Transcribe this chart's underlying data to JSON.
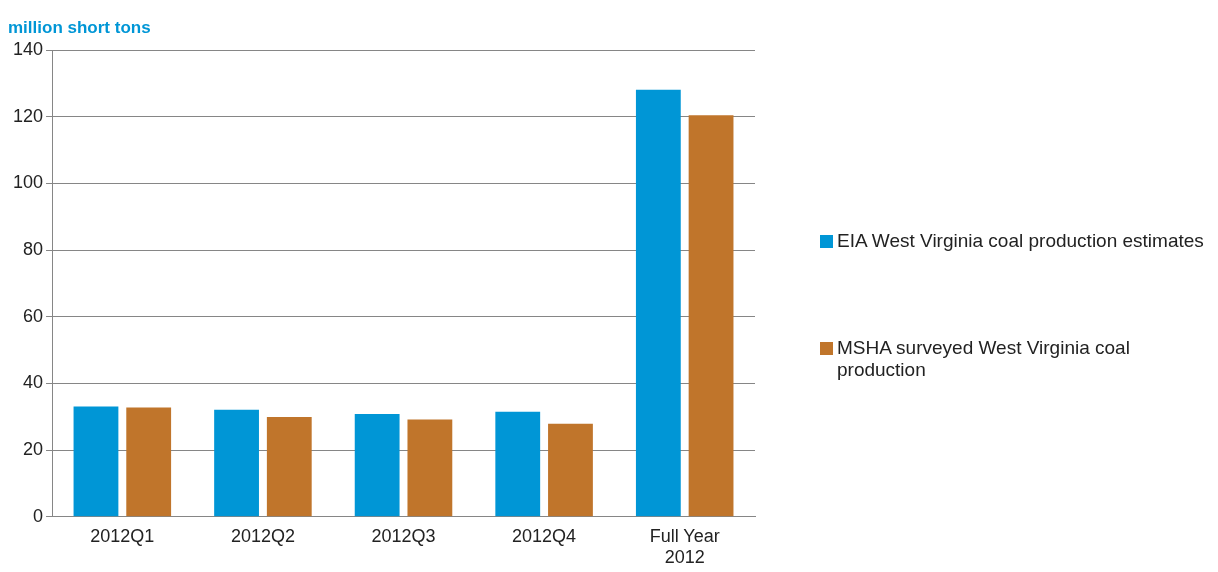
{
  "chart_data": {
    "type": "bar",
    "ylabel": "million short tons",
    "categories": [
      "2012Q1",
      "2012Q2",
      "2012Q3",
      "2012Q4",
      "Full Year 2012"
    ],
    "series": [
      {
        "name": "EIA West Virginia coal production estimates",
        "color": "#0096d6",
        "values": [
          33.1,
          32.1,
          30.8,
          31.5,
          128.1
        ]
      },
      {
        "name": "MSHA surveyed West Virginia coal production",
        "color": "#c0752b",
        "values": [
          32.8,
          29.9,
          29.2,
          27.9,
          120.4
        ]
      }
    ],
    "ylim": [
      0,
      140
    ],
    "yticks": [
      0,
      20,
      40,
      60,
      80,
      100,
      120,
      140
    ],
    "grid": "y",
    "legend": "right"
  }
}
